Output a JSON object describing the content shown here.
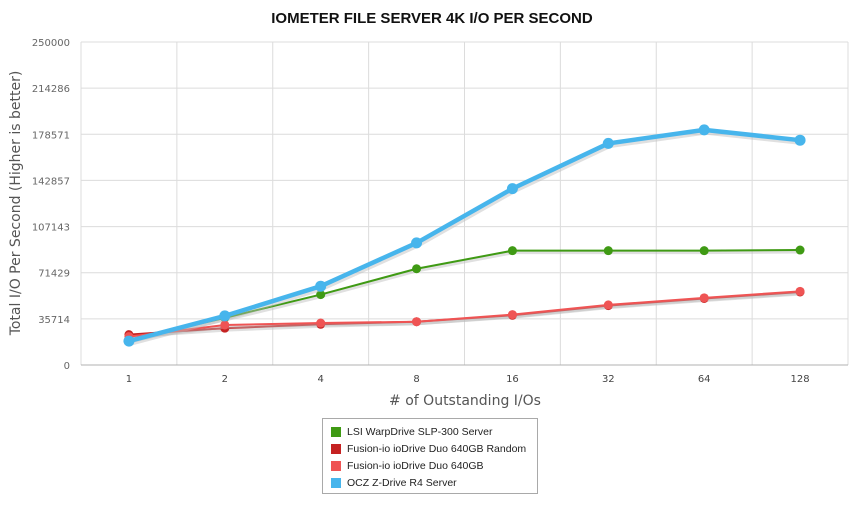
{
  "chart_data": {
    "type": "line",
    "title": "IOMETER FILE SERVER 4K I/O PER SECOND",
    "xlabel": "# of Outstanding I/Os",
    "ylabel": "Total I/O Per Second (Higher is better)",
    "categories": [
      "1",
      "2",
      "4",
      "8",
      "16",
      "32",
      "64",
      "128"
    ],
    "ylim": [
      0,
      250000
    ],
    "yticks": [
      "0",
      "35714",
      "71429",
      "107143",
      "142857",
      "178571",
      "214286",
      "250000"
    ],
    "grid": true,
    "legend_position": "bottom",
    "series": [
      {
        "name": "LSI WarpDrive SLP-300 Server",
        "color": "#3f9a14",
        "values": [
          19500,
          36500,
          54500,
          74500,
          88500,
          88500,
          88500,
          89000
        ]
      },
      {
        "name": "Fusion-io ioDrive Duo 640GB Random",
        "color": "#c52222",
        "values": [
          23500,
          28500,
          31500,
          33500,
          38500,
          46000,
          51500,
          56500
        ]
      },
      {
        "name": "Fusion-io ioDrive Duo 640GB",
        "color": "#ef5454",
        "values": [
          22000,
          31000,
          32500,
          33500,
          39000,
          46500,
          52000,
          57000
        ]
      },
      {
        "name": "OCZ Z-Drive R4 Server",
        "color": "#47b5ec",
        "values": [
          18500,
          38000,
          61000,
          94500,
          136500,
          171500,
          182000,
          174000
        ]
      }
    ]
  }
}
